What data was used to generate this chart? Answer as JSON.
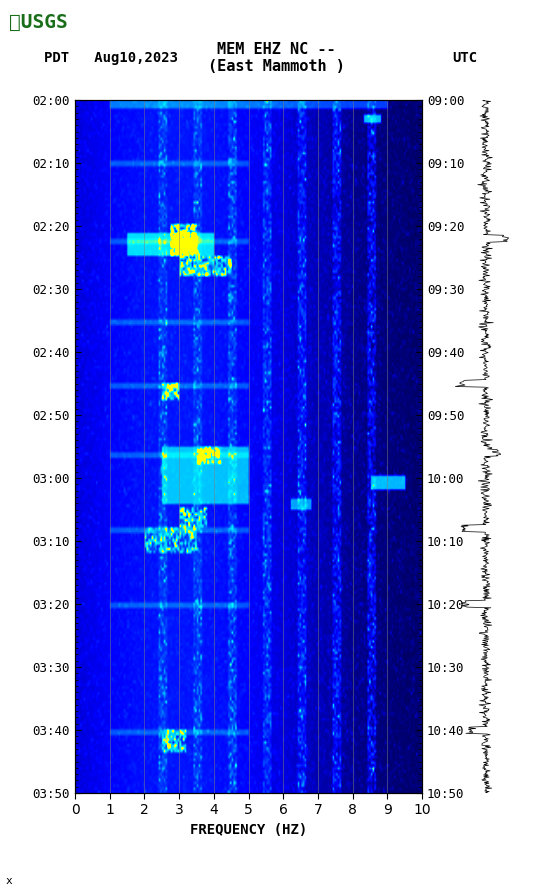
{
  "title_line1": "MEM EHZ NC --",
  "title_line2": "(East Mammoth )",
  "left_label": "PDT   Aug10,2023",
  "right_label": "UTC",
  "xlabel": "FREQUENCY (HZ)",
  "freq_min": 0,
  "freq_max": 10,
  "time_start_pdt": "02:00",
  "time_end_pdt": "03:50",
  "time_start_utc": "09:00",
  "time_end_utc": "10:50",
  "ytick_pdt": [
    "02:00",
    "02:10",
    "02:20",
    "02:30",
    "02:40",
    "02:50",
    "03:00",
    "03:10",
    "03:20",
    "03:30",
    "03:40",
    "03:50"
  ],
  "ytick_utc": [
    "09:00",
    "09:10",
    "09:20",
    "09:30",
    "09:40",
    "09:50",
    "10:00",
    "10:10",
    "10:20",
    "10:30",
    "10:40",
    "10:50"
  ],
  "xticks": [
    0,
    1,
    2,
    3,
    4,
    5,
    6,
    7,
    8,
    9,
    10
  ],
  "grid_lines_freq": [
    1,
    2,
    3,
    4,
    5,
    6,
    7,
    8,
    9
  ],
  "bg_color": "#000080",
  "spectrogram_dark": "#00008B",
  "spectrogram_mid": "#0000FF",
  "spectrogram_bright": "#00FFFF",
  "spectrogram_peak": "#FFFF00",
  "figsize": [
    5.52,
    8.93
  ],
  "dpi": 100
}
